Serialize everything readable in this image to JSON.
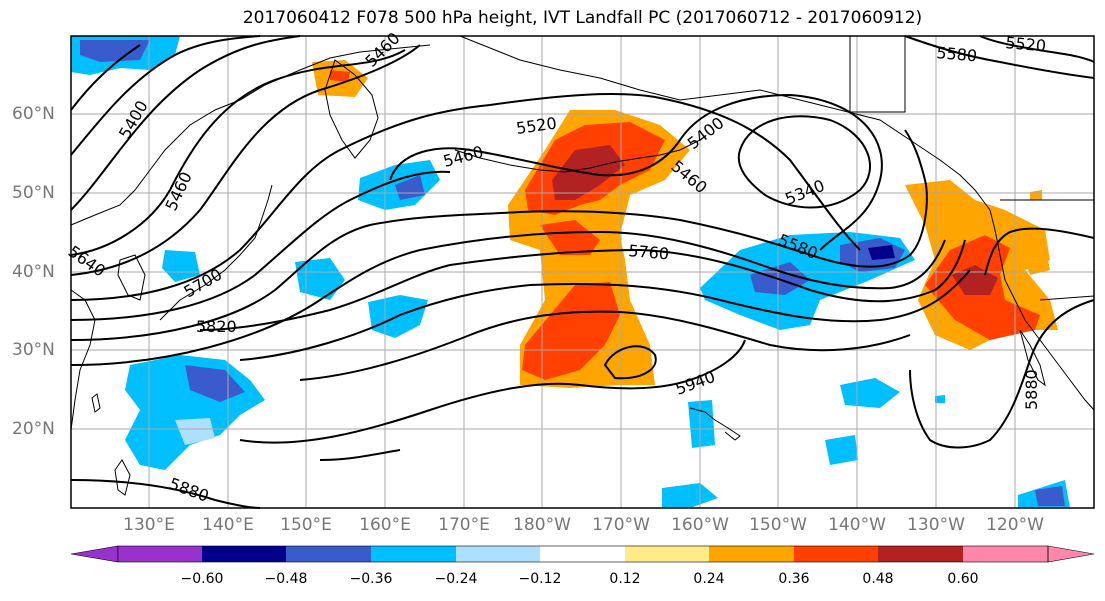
{
  "title": "2017060412 F078 500 hPa height, IVT Landfall PC (2017060712 - 2017060912)",
  "lat_labels": [
    "60°N",
    "50°N",
    "40°N",
    "30°N",
    "20°N"
  ],
  "lon_labels": [
    "130°E",
    "140°E",
    "150°E",
    "160°E",
    "170°E",
    "180°W",
    "170°W",
    "160°W",
    "150°W",
    "140°W",
    "130°W",
    "120°W"
  ],
  "contour_labels": [
    "5460",
    "5400",
    "5520",
    "5580",
    "5520",
    "5460",
    "5460",
    "5400",
    "5460",
    "5340",
    "5640",
    "5700",
    "5820",
    "5760",
    "5580",
    "5940",
    "5880",
    "5880"
  ],
  "colorbar": {
    "ticks": [
      "−0.60",
      "−0.48",
      "−0.36",
      "−0.24",
      "−0.12",
      "0.12",
      "0.24",
      "0.36",
      "0.48",
      "0.60"
    ],
    "colors": [
      "#9932CC",
      "#00008B",
      "#3A5BCB",
      "#00BFFF",
      "#ADDFFF",
      "#FFFFFF",
      "#FFEB8A",
      "#FFA500",
      "#FF4000",
      "#B22222",
      "#FF88AA"
    ]
  },
  "fill_colors": {
    "pos1": "#FFEB8A",
    "pos2": "#FFA500",
    "pos3": "#FF4000",
    "pos4": "#B22222",
    "neg1": "#ADDFFF",
    "neg2": "#00BFFF",
    "neg3": "#3A5BCB",
    "neg4": "#00008B"
  }
}
